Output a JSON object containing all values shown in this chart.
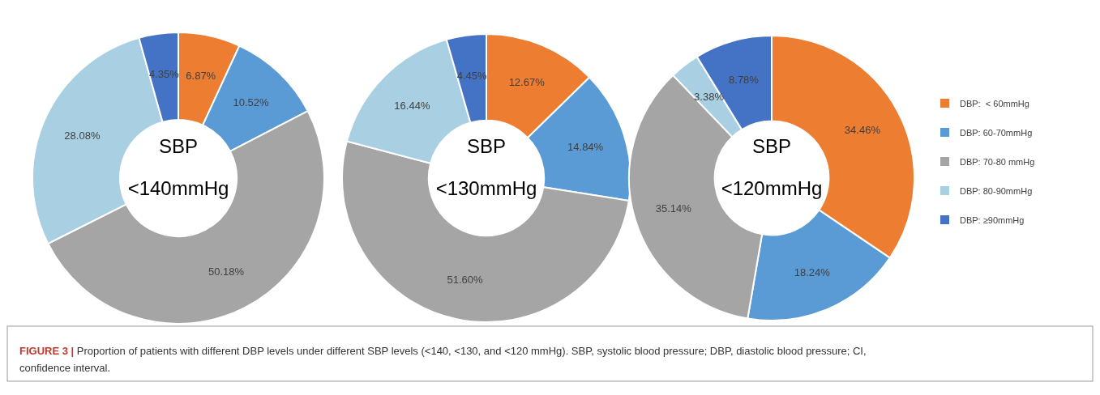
{
  "chart_data": [
    {
      "type": "donut",
      "title": "SBP",
      "subtitle": "<140mmHg",
      "categories": [
        null,
        null,
        null,
        null,
        null
      ],
      "values": [
        6.87,
        10.52,
        50.18,
        28.08,
        4.35
      ],
      "value_labels": [
        "6.87%",
        "10.52%",
        "50.18%",
        "28.08%",
        "4.35%"
      ],
      "colors": [
        "#ed7d31",
        "#5b9bd5",
        "#a5a5a5",
        "#a9cfe3",
        "#4472c4"
      ],
      "annotations": [
        "FIGURE 3 | Proportion of patients with different DBP levels under different SBP levels (<140, <130, and <120 mmHg). SBP, systolic blood pressure; DBP, diastolic blood pressure; CI, confidence interval."
      ]
    },
    {
      "type": "donut",
      "title": "SBP",
      "subtitle": "<130mmHg",
      "categories": [
        null,
        null,
        null,
        null,
        null
      ],
      "values": [
        12.67,
        14.84,
        51.6,
        16.44,
        4.45
      ],
      "value_labels": [
        "12.67%",
        "14.84%",
        "51.60%",
        "16.44%",
        "4.45%"
      ],
      "colors": [
        "#ed7d31",
        "#5b9bd5",
        "#a5a5a5",
        "#a9cfe3",
        "#4472c4"
      ]
    },
    {
      "type": "donut",
      "title": "SBP",
      "subtitle": "<120mmHg",
      "categories": [
        "DBP:  < 60mmHg",
        "DBP: 60-70mmHg",
        "DBP: 70-80 mmHg",
        "DBP: 80-90mmHg",
        "DBP: ≥90mmHg"
      ],
      "values": [
        34.46,
        18.24,
        35.14,
        3.38,
        8.78
      ],
      "value_labels": [
        "34.46%",
        "18.24%",
        "35.14%",
        "3.38%",
        "8.78%"
      ],
      "colors": [
        "#ed7d31",
        "#5b9bd5",
        "#a5a5a5",
        "#a9cfe3",
        "#4472c4"
      ],
      "legend": "right"
    }
  ]
}
